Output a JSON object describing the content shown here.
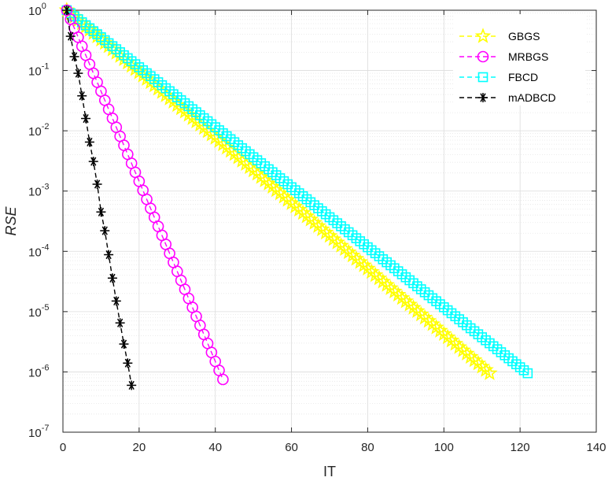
{
  "chart_data": {
    "type": "line",
    "title": "",
    "xlabel": "IT",
    "ylabel": "RSE",
    "xlim": [
      0,
      140
    ],
    "ylim": [
      1e-07,
      1
    ],
    "yscale": "log",
    "grid": true,
    "minor_grid": true,
    "legend_position": "top-right",
    "xticks": [
      "0",
      "20",
      "40",
      "60",
      "80",
      "100",
      "120",
      "140"
    ],
    "yticks": [
      {
        "base": "10",
        "exp": "-7"
      },
      {
        "base": "10",
        "exp": "-6"
      },
      {
        "base": "10",
        "exp": "-5"
      },
      {
        "base": "10",
        "exp": "-4"
      },
      {
        "base": "10",
        "exp": "-3"
      },
      {
        "base": "10",
        "exp": "-2"
      },
      {
        "base": "10",
        "exp": "-1"
      },
      {
        "base": "10",
        "exp": "0"
      }
    ],
    "series": [
      {
        "name": "GBGS",
        "marker": "star",
        "color": "#FFFF00",
        "line": "dashed",
        "x": [
          1,
          112
        ],
        "y": [
          1.0,
          9.5e-07
        ]
      },
      {
        "name": "MRBGS",
        "marker": "circle",
        "color": "#FF00FF",
        "line": "dashed",
        "x": [
          1,
          42
        ],
        "y": [
          1.0,
          7.5e-07
        ]
      },
      {
        "name": "FBCD",
        "marker": "square",
        "color": "#00FFFF",
        "line": "dashed",
        "x": [
          1,
          122
        ],
        "y": [
          1.0,
          9.5e-07
        ]
      },
      {
        "name": "mADBCD",
        "marker": "asterisk",
        "color": "#000000",
        "line": "dashed",
        "x": [
          1,
          2,
          3,
          4,
          5,
          6,
          7,
          8,
          9,
          10,
          11,
          12,
          13,
          14,
          15,
          16,
          17,
          18
        ],
        "y": [
          1.0,
          0.37,
          0.17,
          0.09,
          0.038,
          0.016,
          0.0065,
          0.0031,
          0.0013,
          0.00045,
          0.00022,
          8.8e-05,
          3.6e-05,
          1.5e-05,
          6.5e-06,
          2.9e-06,
          1.4e-06,
          6e-07
        ]
      }
    ]
  }
}
